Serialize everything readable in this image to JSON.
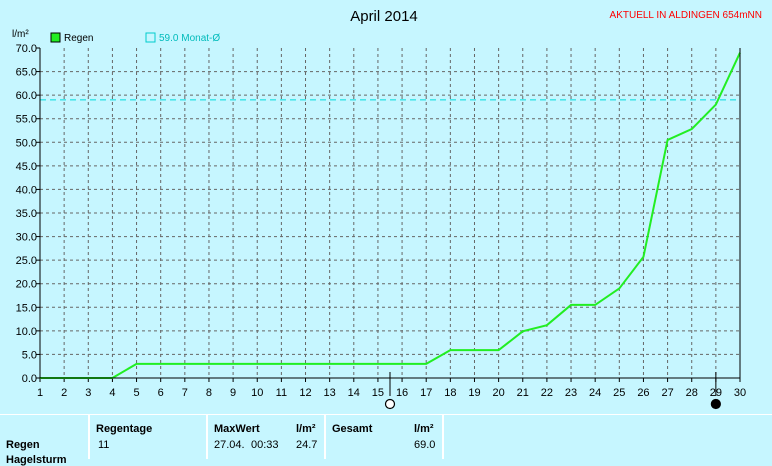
{
  "chart_data": {
    "type": "line",
    "title": "April 2014",
    "ylabel": "l/m²",
    "corner_note": "AKTUELL IN ALDINGEN 654mNN",
    "ylim": [
      0,
      70
    ],
    "y_ticks": [
      "0.0",
      "5.0",
      "10.0",
      "15.0",
      "20.0",
      "25.0",
      "30.0",
      "35.0",
      "40.0",
      "45.0",
      "50.0",
      "55.0",
      "60.0",
      "65.0",
      "70.0"
    ],
    "x_ticks": [
      "1",
      "2",
      "3",
      "4",
      "5",
      "6",
      "7",
      "8",
      "9",
      "10",
      "11",
      "12",
      "13",
      "14",
      "15",
      "16",
      "17",
      "18",
      "19",
      "20",
      "21",
      "22",
      "23",
      "24",
      "25",
      "26",
      "27",
      "28",
      "29",
      "30"
    ],
    "grid": true,
    "legend_position": "top-left",
    "series": [
      {
        "name": "Regen",
        "color": "#22ee22",
        "x": [
          1,
          2,
          3,
          4,
          5,
          6,
          7,
          8,
          9,
          10,
          11,
          12,
          13,
          14,
          15,
          16,
          17,
          18,
          19,
          20,
          21,
          22,
          23,
          24,
          25,
          26,
          27,
          28,
          29,
          30
        ],
        "values": [
          0,
          0,
          0,
          0,
          3.0,
          3.0,
          3.0,
          3.0,
          3.0,
          3.0,
          3.0,
          3.0,
          3.0,
          3.0,
          3.0,
          3.0,
          3.0,
          5.9,
          5.9,
          5.9,
          9.9,
          11.2,
          15.5,
          15.5,
          19.0,
          25.7,
          50.5,
          52.8,
          58.0,
          69.0
        ]
      }
    ],
    "reference_line": {
      "label": "59.0 Monat-Ø",
      "value": 59.0,
      "color": "#00dddd"
    },
    "moon_markers": [
      {
        "day": 15.5,
        "icon": "full-moon-icon"
      },
      {
        "day": 29,
        "icon": "new-moon-icon"
      }
    ]
  },
  "stats": {
    "row_label": "Regen",
    "row_label_2": "Hagelsturm",
    "regentage": {
      "header": "Regentage",
      "value": "11"
    },
    "maxwert": {
      "header": "MaxWert",
      "unit": "l/m²",
      "date": "27.04.",
      "time": "00:33",
      "value": "24.7"
    },
    "gesamt": {
      "header": "Gesamt",
      "unit": "l/m²",
      "value": "69.0"
    }
  }
}
